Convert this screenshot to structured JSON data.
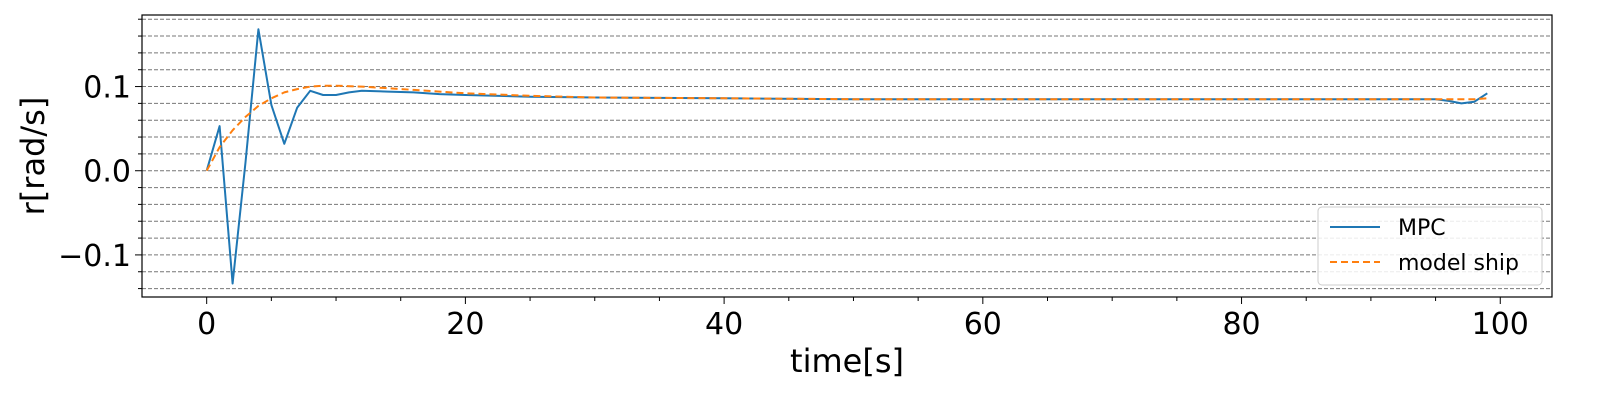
{
  "chart_data": {
    "type": "line",
    "title": "",
    "xlabel": "time[s]",
    "ylabel": "r[rad/s]",
    "xlim": [
      -5,
      104
    ],
    "ylim": [
      -0.15,
      0.185
    ],
    "xticks": [
      0,
      20,
      40,
      60,
      80,
      100
    ],
    "xtick_labels": [
      "0",
      "20",
      "40",
      "60",
      "80",
      "100"
    ],
    "x_minor_step": 5,
    "yticks": [
      -0.1,
      0.0,
      0.1
    ],
    "ytick_labels": [
      "−0.1",
      "0.0",
      "0.1"
    ],
    "y_grid_step": 0.02,
    "grid": "horizontal dashed (major and minor)",
    "legend_position": "lower-right",
    "series": [
      {
        "name": "MPC",
        "color": "#1f77b4",
        "style": "solid",
        "x": [
          0,
          1,
          2,
          3,
          4,
          5,
          6,
          7,
          8,
          9,
          10,
          11,
          12,
          14,
          16,
          18,
          20,
          25,
          30,
          40,
          50,
          60,
          70,
          80,
          90,
          95,
          96,
          97,
          98,
          99
        ],
        "y": [
          0.0,
          0.053,
          -0.134,
          0.01,
          0.168,
          0.078,
          0.032,
          0.075,
          0.095,
          0.09,
          0.09,
          0.093,
          0.095,
          0.094,
          0.093,
          0.091,
          0.09,
          0.088,
          0.087,
          0.086,
          0.085,
          0.085,
          0.085,
          0.085,
          0.085,
          0.085,
          0.083,
          0.08,
          0.082,
          0.092
        ]
      },
      {
        "name": "model ship",
        "color": "#ff7f0e",
        "style": "dashed",
        "x": [
          0,
          1,
          2,
          3,
          4,
          5,
          6,
          7,
          8,
          9,
          10,
          12,
          14,
          16,
          18,
          20,
          25,
          30,
          40,
          50,
          60,
          70,
          80,
          90,
          95,
          98,
          99
        ],
        "y": [
          0.0,
          0.028,
          0.048,
          0.064,
          0.077,
          0.086,
          0.093,
          0.097,
          0.1,
          0.101,
          0.101,
          0.1,
          0.098,
          0.096,
          0.094,
          0.092,
          0.089,
          0.087,
          0.086,
          0.085,
          0.085,
          0.085,
          0.085,
          0.085,
          0.085,
          0.085,
          0.086
        ]
      }
    ]
  }
}
